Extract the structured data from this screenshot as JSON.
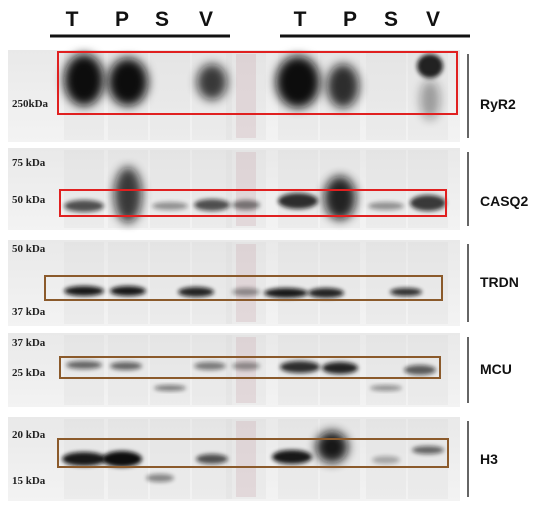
{
  "header": {
    "group_1_lanes": [
      "T",
      "P",
      "S",
      "V"
    ],
    "group_2_lanes": [
      "T",
      "P",
      "S",
      "V"
    ]
  },
  "panels": [
    {
      "protein": "RyR2",
      "markers": [
        "250kDa"
      ]
    },
    {
      "protein": "CASQ2",
      "markers": [
        "75 kDa",
        "50 kDa"
      ]
    },
    {
      "protein": "TRDN",
      "markers": [
        "50 kDa",
        "37 kDa"
      ]
    },
    {
      "protein": "MCU",
      "markers": [
        "37 kDa",
        "25 kDa"
      ]
    },
    {
      "protein": "H3",
      "markers": [
        "20 kDa",
        "15 kDa"
      ]
    }
  ]
}
